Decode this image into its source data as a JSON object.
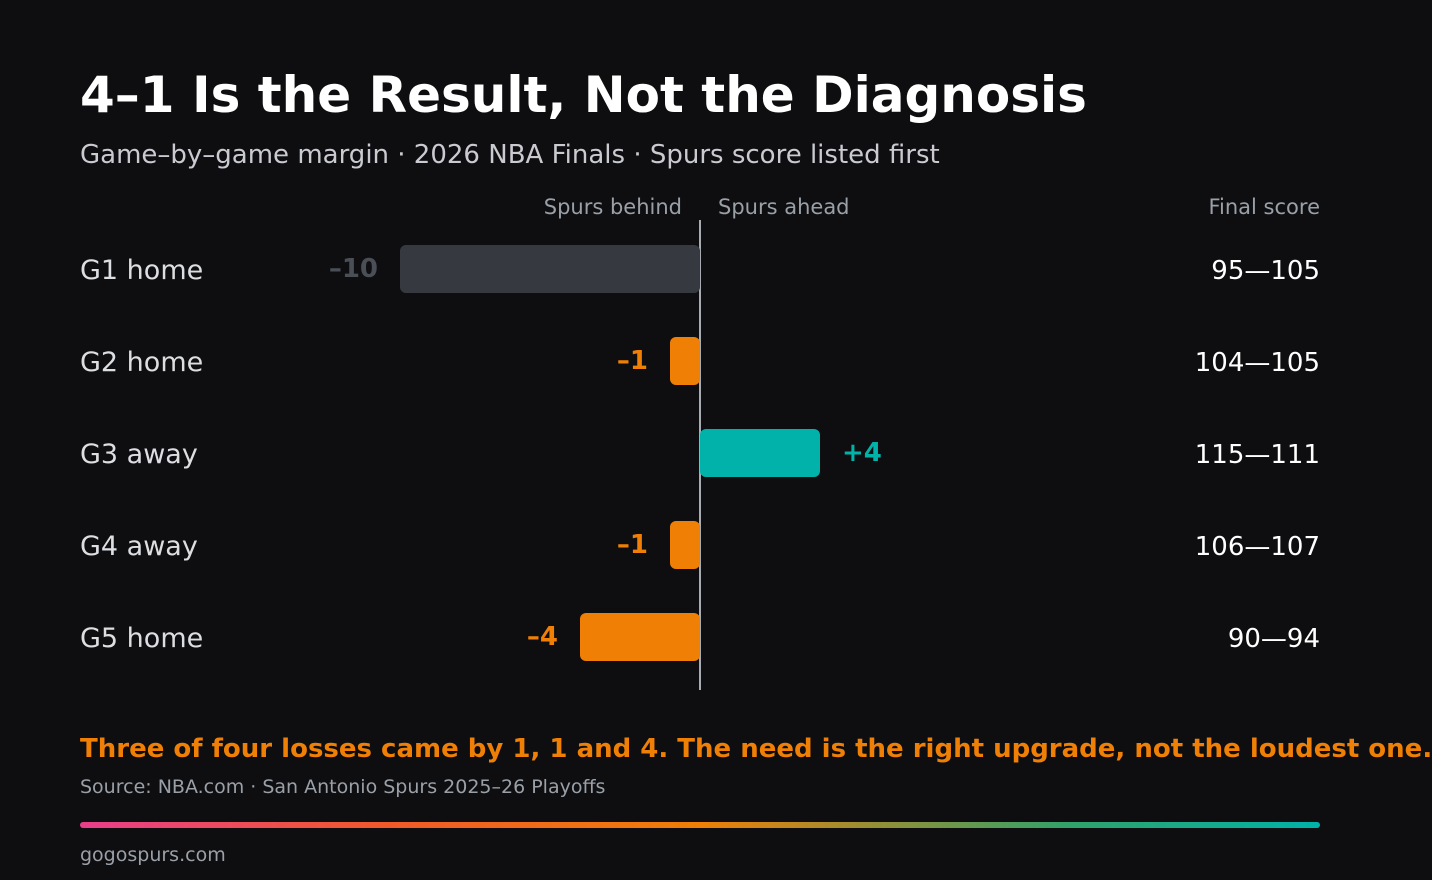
{
  "chart_data": {
    "type": "bar",
    "orientation": "horizontal",
    "title": "4–1 Is the Result, Not the Diagnosis",
    "subtitle": "Game–by–game margin · 2026 NBA Finals · Spurs score listed first",
    "header": {
      "behind": "Spurs behind",
      "ahead": "Spurs ahead",
      "final": "Final score"
    },
    "xlim": [
      -10,
      10
    ],
    "grid": false,
    "categories": [
      "G1 home",
      "G2 home",
      "G3 away",
      "G4 away",
      "G5 home"
    ],
    "values": [
      -10,
      -1,
      4,
      -1,
      -4
    ],
    "value_labels": [
      "–10",
      "–1",
      "+4",
      "–1",
      "–4"
    ],
    "final_scores": [
      "95—105",
      "104—105",
      "115—111",
      "106—107",
      "90—94"
    ],
    "bar_colors": [
      "#363a40",
      "#f07f06",
      "#00b2a9",
      "#f07f06",
      "#f07f06"
    ],
    "label_colors": [
      "#4a4f57",
      "#f07f06",
      "#00b2a9",
      "#f07f06",
      "#f07f06"
    ],
    "takeaway": "Three of four losses came by 1, 1 and 4. The need is the right upgrade, not the loudest one.",
    "source": "Source: NBA.com · San Antonio Spurs 2025–26 Playoffs"
  },
  "footer": {
    "site": "gogospurs.com"
  },
  "colors": {
    "background": "#0e0e10",
    "loss": "#f07f06",
    "win": "#00b2a9",
    "blowout_loss": "#363a40"
  }
}
